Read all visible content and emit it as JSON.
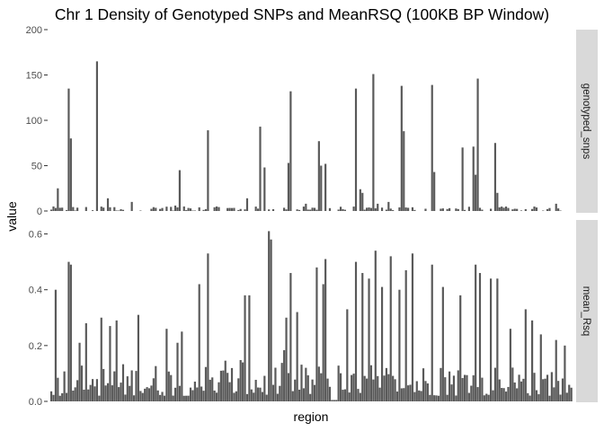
{
  "chart_data": {
    "type": "bar",
    "title": "Chr 1 Density of Genotyped SNPs and MeanRSQ (100KB BP Window)",
    "xlabel": "region",
    "ylabel": "value",
    "x_tick_labels": "none",
    "grid": false,
    "legend": "none",
    "colors": {
      "bar": "#595959",
      "strip": "#d9d9d9",
      "panel": "#ffffff"
    },
    "n_regions": 240,
    "gap_regions": [
      129,
      130,
      131
    ],
    "facets": [
      {
        "strip_label": "genotyped_snps",
        "ylim": [
          0,
          200
        ],
        "yticks": [
          0,
          50,
          100,
          150,
          200
        ],
        "baseline_noise": [
          0,
          5
        ],
        "peaks": [
          {
            "region": 3,
            "value": 25
          },
          {
            "region": 8,
            "value": 135
          },
          {
            "region": 9,
            "value": 80
          },
          {
            "region": 21,
            "value": 165
          },
          {
            "region": 26,
            "value": 14
          },
          {
            "region": 37,
            "value": 10
          },
          {
            "region": 57,
            "value": 6
          },
          {
            "region": 58,
            "value": 4
          },
          {
            "region": 59,
            "value": 45
          },
          {
            "region": 72,
            "value": 89
          },
          {
            "region": 90,
            "value": 14
          },
          {
            "region": 96,
            "value": 93
          },
          {
            "region": 98,
            "value": 48
          },
          {
            "region": 109,
            "value": 53
          },
          {
            "region": 110,
            "value": 132
          },
          {
            "region": 117,
            "value": 8
          },
          {
            "region": 123,
            "value": 77
          },
          {
            "region": 124,
            "value": 50
          },
          {
            "region": 126,
            "value": 52
          },
          {
            "region": 140,
            "value": 135
          },
          {
            "region": 142,
            "value": 24
          },
          {
            "region": 143,
            "value": 20
          },
          {
            "region": 148,
            "value": 151
          },
          {
            "region": 150,
            "value": 8
          },
          {
            "region": 155,
            "value": 10
          },
          {
            "region": 161,
            "value": 138
          },
          {
            "region": 162,
            "value": 88
          },
          {
            "region": 175,
            "value": 139
          },
          {
            "region": 176,
            "value": 43
          },
          {
            "region": 189,
            "value": 70
          },
          {
            "region": 194,
            "value": 71
          },
          {
            "region": 195,
            "value": 40
          },
          {
            "region": 196,
            "value": 146
          },
          {
            "region": 204,
            "value": 75
          },
          {
            "region": 205,
            "value": 20
          },
          {
            "region": 232,
            "value": 8
          }
        ]
      },
      {
        "strip_label": "mean_Rsq",
        "ylim": [
          0,
          0.65
        ],
        "yticks": [
          0.0,
          0.2,
          0.4,
          0.6
        ],
        "ytick_labels": [
          "0.0",
          "0.2",
          "0.4",
          "0.6"
        ],
        "baseline_range": [
          0.02,
          0.14
        ],
        "peaks": [
          {
            "region": 2,
            "value": 0.4
          },
          {
            "region": 8,
            "value": 0.5
          },
          {
            "region": 9,
            "value": 0.49
          },
          {
            "region": 13,
            "value": 0.21
          },
          {
            "region": 16,
            "value": 0.28
          },
          {
            "region": 23,
            "value": 0.3
          },
          {
            "region": 27,
            "value": 0.27
          },
          {
            "region": 30,
            "value": 0.29
          },
          {
            "region": 40,
            "value": 0.31
          },
          {
            "region": 53,
            "value": 0.26
          },
          {
            "region": 58,
            "value": 0.21
          },
          {
            "region": 60,
            "value": 0.25
          },
          {
            "region": 68,
            "value": 0.42
          },
          {
            "region": 72,
            "value": 0.53
          },
          {
            "region": 89,
            "value": 0.38
          },
          {
            "region": 91,
            "value": 0.38
          },
          {
            "region": 100,
            "value": 0.61
          },
          {
            "region": 101,
            "value": 0.58
          },
          {
            "region": 108,
            "value": 0.3
          },
          {
            "region": 110,
            "value": 0.46
          },
          {
            "region": 113,
            "value": 0.32
          },
          {
            "region": 122,
            "value": 0.48
          },
          {
            "region": 125,
            "value": 0.42
          },
          {
            "region": 126,
            "value": 0.51
          },
          {
            "region": 136,
            "value": 0.33
          },
          {
            "region": 140,
            "value": 0.5
          },
          {
            "region": 143,
            "value": 0.46
          },
          {
            "region": 146,
            "value": 0.44
          },
          {
            "region": 149,
            "value": 0.54
          },
          {
            "region": 152,
            "value": 0.41
          },
          {
            "region": 156,
            "value": 0.52
          },
          {
            "region": 160,
            "value": 0.4
          },
          {
            "region": 163,
            "value": 0.47
          },
          {
            "region": 166,
            "value": 0.53
          },
          {
            "region": 175,
            "value": 0.49
          },
          {
            "region": 180,
            "value": 0.41
          },
          {
            "region": 188,
            "value": 0.38
          },
          {
            "region": 195,
            "value": 0.49
          },
          {
            "region": 197,
            "value": 0.46
          },
          {
            "region": 202,
            "value": 0.44
          },
          {
            "region": 205,
            "value": 0.44
          },
          {
            "region": 211,
            "value": 0.26
          },
          {
            "region": 218,
            "value": 0.33
          },
          {
            "region": 221,
            "value": 0.29
          },
          {
            "region": 225,
            "value": 0.24
          },
          {
            "region": 232,
            "value": 0.22
          },
          {
            "region": 236,
            "value": 0.2
          }
        ]
      }
    ]
  }
}
